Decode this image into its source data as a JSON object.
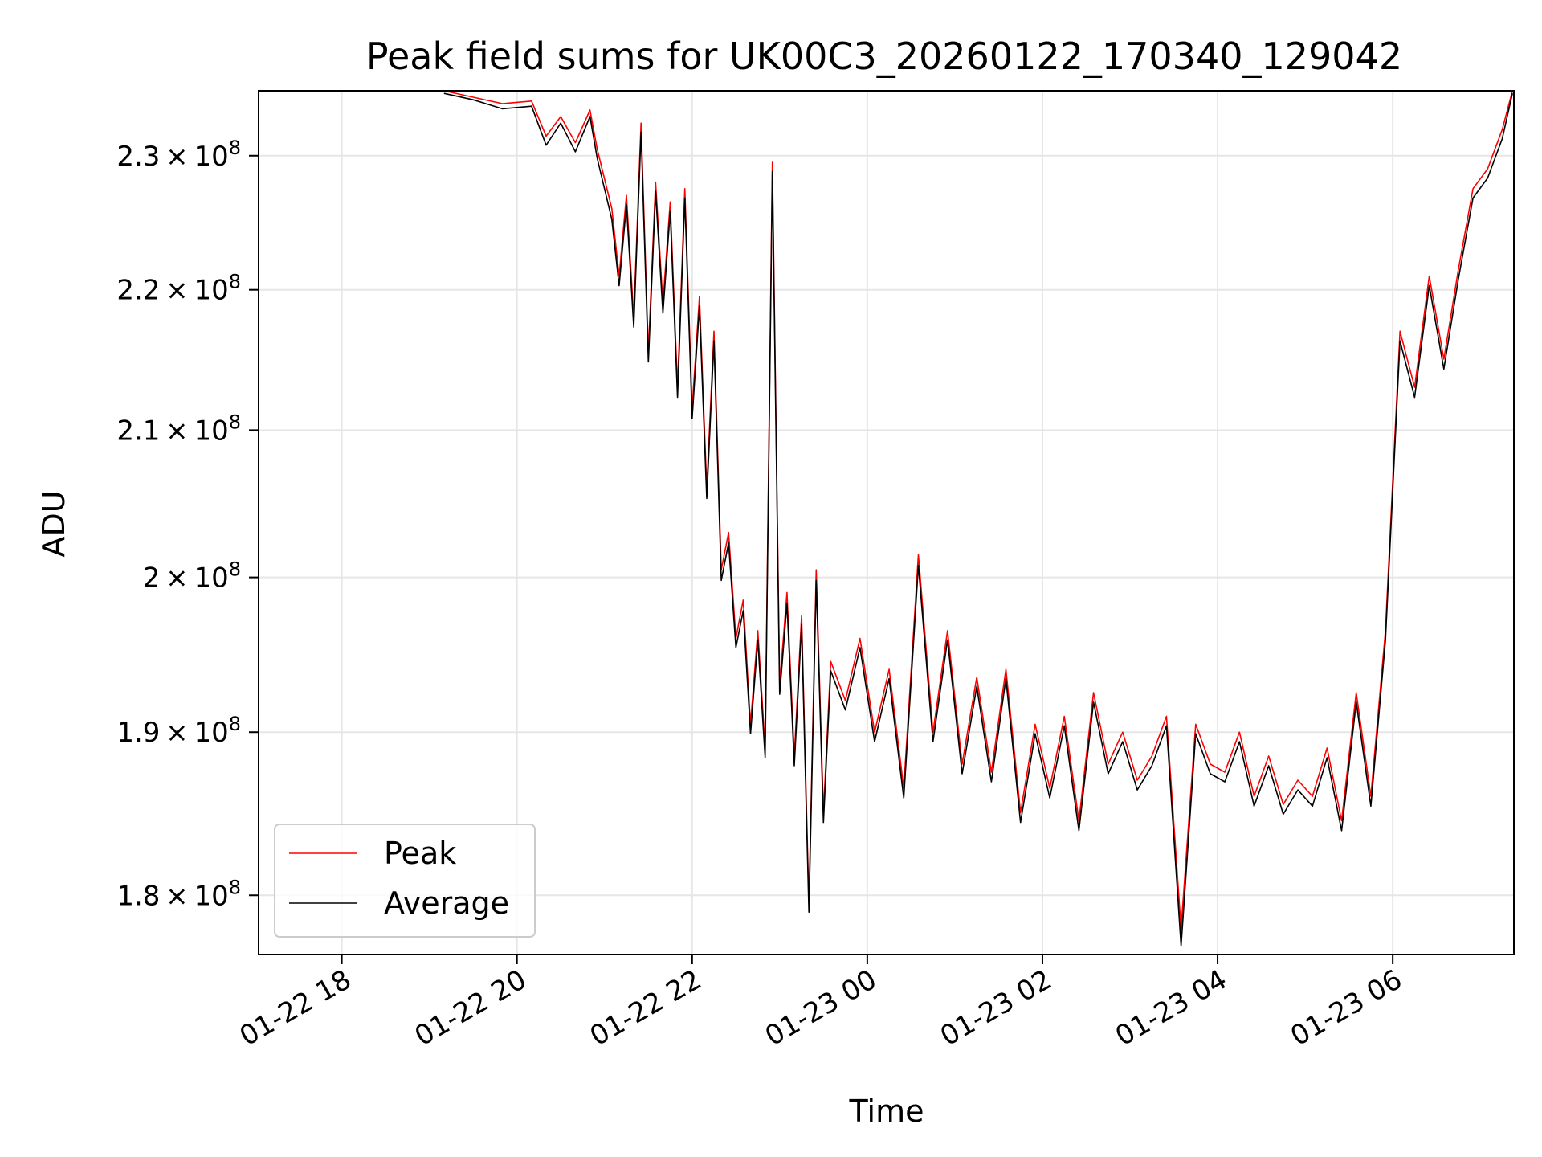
{
  "chart_data": {
    "type": "line",
    "title": "Peak field sums for UK00C3_20260122_170340_129042",
    "xlabel": "Time",
    "ylabel": "ADU",
    "yscale": "log",
    "grid": true,
    "legend_position": "lower-left",
    "xlim": [
      "2026-01-22 17:03",
      "2026-01-23 07:23"
    ],
    "ylim": [
      176500000,
      235000000
    ],
    "x_ticks": [
      {
        "value": "2026-01-22 18:00",
        "label": "01-22 18"
      },
      {
        "value": "2026-01-22 20:00",
        "label": "01-22 20"
      },
      {
        "value": "2026-01-22 22:00",
        "label": "01-22 22"
      },
      {
        "value": "2026-01-23 00:00",
        "label": "01-23 00"
      },
      {
        "value": "2026-01-23 02:00",
        "label": "01-23 02"
      },
      {
        "value": "2026-01-23 04:00",
        "label": "01-23 04"
      },
      {
        "value": "2026-01-23 06:00",
        "label": "01-23 06"
      }
    ],
    "y_ticks": [
      {
        "value": 180000000,
        "mantissa": "1.8",
        "exponent": "8"
      },
      {
        "value": 190000000,
        "mantissa": "1.9",
        "exponent": "8"
      },
      {
        "value": 200000000,
        "mantissa": "2",
        "exponent": "8"
      },
      {
        "value": 210000000,
        "mantissa": "2.1",
        "exponent": "8"
      },
      {
        "value": 220000000,
        "mantissa": "2.2",
        "exponent": "8"
      },
      {
        "value": 230000000,
        "mantissa": "2.3",
        "exponent": "8"
      }
    ],
    "series": [
      {
        "name": "Peak",
        "color": "#ff0000",
        "points": [
          [
            "2026-01-22 19:10",
            235000000
          ],
          [
            "2026-01-22 19:30",
            234500000
          ],
          [
            "2026-01-22 19:50",
            234000000
          ],
          [
            "2026-01-22 20:10",
            234200000
          ],
          [
            "2026-01-22 20:20",
            231500000
          ],
          [
            "2026-01-22 20:30",
            233000000
          ],
          [
            "2026-01-22 20:40",
            231000000
          ],
          [
            "2026-01-22 20:50",
            233500000
          ],
          [
            "2026-01-22 20:55",
            230500000
          ],
          [
            "2026-01-22 21:05",
            226000000
          ],
          [
            "2026-01-22 21:10",
            221000000
          ],
          [
            "2026-01-22 21:15",
            227000000
          ],
          [
            "2026-01-22 21:20",
            218000000
          ],
          [
            "2026-01-22 21:25",
            232500000
          ],
          [
            "2026-01-22 21:30",
            215500000
          ],
          [
            "2026-01-22 21:35",
            228000000
          ],
          [
            "2026-01-22 21:40",
            219000000
          ],
          [
            "2026-01-22 21:45",
            226500000
          ],
          [
            "2026-01-22 21:50",
            213000000
          ],
          [
            "2026-01-22 21:55",
            227500000
          ],
          [
            "2026-01-22 22:00",
            211500000
          ],
          [
            "2026-01-22 22:05",
            219500000
          ],
          [
            "2026-01-22 22:10",
            206000000
          ],
          [
            "2026-01-22 22:15",
            217000000
          ],
          [
            "2026-01-22 22:20",
            200500000
          ],
          [
            "2026-01-22 22:25",
            203000000
          ],
          [
            "2026-01-22 22:30",
            196000000
          ],
          [
            "2026-01-22 22:35",
            198500000
          ],
          [
            "2026-01-22 22:40",
            190500000
          ],
          [
            "2026-01-22 22:45",
            196500000
          ],
          [
            "2026-01-22 22:50",
            189000000
          ],
          [
            "2026-01-22 22:55",
            229500000
          ],
          [
            "2026-01-22 23:00",
            193000000
          ],
          [
            "2026-01-22 23:05",
            199000000
          ],
          [
            "2026-01-22 23:10",
            188500000
          ],
          [
            "2026-01-22 23:15",
            197500000
          ],
          [
            "2026-01-22 23:20",
            179500000
          ],
          [
            "2026-01-22 23:25",
            200500000
          ],
          [
            "2026-01-22 23:30",
            185000000
          ],
          [
            "2026-01-22 23:35",
            194500000
          ],
          [
            "2026-01-22 23:45",
            192000000
          ],
          [
            "2026-01-22 23:55",
            196000000
          ],
          [
            "2026-01-23 00:05",
            190000000
          ],
          [
            "2026-01-23 00:15",
            194000000
          ],
          [
            "2026-01-23 00:25",
            186500000
          ],
          [
            "2026-01-23 00:35",
            201500000
          ],
          [
            "2026-01-23 00:45",
            190000000
          ],
          [
            "2026-01-23 00:55",
            196500000
          ],
          [
            "2026-01-23 01:05",
            188000000
          ],
          [
            "2026-01-23 01:15",
            193500000
          ],
          [
            "2026-01-23 01:25",
            187500000
          ],
          [
            "2026-01-23 01:35",
            194000000
          ],
          [
            "2026-01-23 01:45",
            185000000
          ],
          [
            "2026-01-23 01:55",
            190500000
          ],
          [
            "2026-01-23 02:05",
            186500000
          ],
          [
            "2026-01-23 02:15",
            191000000
          ],
          [
            "2026-01-23 02:25",
            184500000
          ],
          [
            "2026-01-23 02:35",
            192500000
          ],
          [
            "2026-01-23 02:45",
            188000000
          ],
          [
            "2026-01-23 02:55",
            190000000
          ],
          [
            "2026-01-23 03:05",
            187000000
          ],
          [
            "2026-01-23 03:15",
            188500000
          ],
          [
            "2026-01-23 03:25",
            191000000
          ],
          [
            "2026-01-23 03:35",
            178000000
          ],
          [
            "2026-01-23 03:45",
            190500000
          ],
          [
            "2026-01-23 03:55",
            188000000
          ],
          [
            "2026-01-23 04:05",
            187500000
          ],
          [
            "2026-01-23 04:15",
            190000000
          ],
          [
            "2026-01-23 04:25",
            186000000
          ],
          [
            "2026-01-23 04:35",
            188500000
          ],
          [
            "2026-01-23 04:45",
            185500000
          ],
          [
            "2026-01-23 04:55",
            187000000
          ],
          [
            "2026-01-23 05:05",
            186000000
          ],
          [
            "2026-01-23 05:15",
            189000000
          ],
          [
            "2026-01-23 05:25",
            184500000
          ],
          [
            "2026-01-23 05:35",
            192500000
          ],
          [
            "2026-01-23 05:45",
            186000000
          ],
          [
            "2026-01-23 05:55",
            196500000
          ],
          [
            "2026-01-23 06:05",
            217000000
          ],
          [
            "2026-01-23 06:15",
            213000000
          ],
          [
            "2026-01-23 06:25",
            221000000
          ],
          [
            "2026-01-23 06:35",
            215000000
          ],
          [
            "2026-01-23 06:45",
            221500000
          ],
          [
            "2026-01-23 06:55",
            227500000
          ],
          [
            "2026-01-23 07:05",
            229000000
          ],
          [
            "2026-01-23 07:15",
            232000000
          ],
          [
            "2026-01-23 07:22",
            235000000
          ]
        ]
      },
      {
        "name": "Average",
        "color": "#000000",
        "points": [
          [
            "2026-01-22 19:10",
            234800000
          ],
          [
            "2026-01-22 19:30",
            234300000
          ],
          [
            "2026-01-22 19:50",
            233600000
          ],
          [
            "2026-01-22 20:10",
            233800000
          ],
          [
            "2026-01-22 20:20",
            230800000
          ],
          [
            "2026-01-22 20:30",
            232500000
          ],
          [
            "2026-01-22 20:40",
            230300000
          ],
          [
            "2026-01-22 20:50",
            233000000
          ],
          [
            "2026-01-22 20:55",
            229800000
          ],
          [
            "2026-01-22 21:05",
            225200000
          ],
          [
            "2026-01-22 21:10",
            220300000
          ],
          [
            "2026-01-22 21:15",
            226300000
          ],
          [
            "2026-01-22 21:20",
            217300000
          ],
          [
            "2026-01-22 21:25",
            231800000
          ],
          [
            "2026-01-22 21:30",
            214800000
          ],
          [
            "2026-01-22 21:35",
            227300000
          ],
          [
            "2026-01-22 21:40",
            218300000
          ],
          [
            "2026-01-22 21:45",
            225800000
          ],
          [
            "2026-01-22 21:50",
            212300000
          ],
          [
            "2026-01-22 21:55",
            226800000
          ],
          [
            "2026-01-22 22:00",
            210800000
          ],
          [
            "2026-01-22 22:05",
            218800000
          ],
          [
            "2026-01-22 22:10",
            205300000
          ],
          [
            "2026-01-22 22:15",
            216300000
          ],
          [
            "2026-01-22 22:20",
            199800000
          ],
          [
            "2026-01-22 22:25",
            202300000
          ],
          [
            "2026-01-22 22:30",
            195400000
          ],
          [
            "2026-01-22 22:35",
            197800000
          ],
          [
            "2026-01-22 22:40",
            189900000
          ],
          [
            "2026-01-22 22:45",
            195900000
          ],
          [
            "2026-01-22 22:50",
            188400000
          ],
          [
            "2026-01-22 22:55",
            228800000
          ],
          [
            "2026-01-22 23:00",
            192400000
          ],
          [
            "2026-01-22 23:05",
            198300000
          ],
          [
            "2026-01-22 23:10",
            187900000
          ],
          [
            "2026-01-22 23:15",
            196900000
          ],
          [
            "2026-01-22 23:20",
            179000000
          ],
          [
            "2026-01-22 23:25",
            199800000
          ],
          [
            "2026-01-22 23:30",
            184400000
          ],
          [
            "2026-01-22 23:35",
            193900000
          ],
          [
            "2026-01-22 23:45",
            191400000
          ],
          [
            "2026-01-22 23:55",
            195400000
          ],
          [
            "2026-01-23 00:05",
            189400000
          ],
          [
            "2026-01-23 00:15",
            193400000
          ],
          [
            "2026-01-23 00:25",
            185900000
          ],
          [
            "2026-01-23 00:35",
            200800000
          ],
          [
            "2026-01-23 00:45",
            189400000
          ],
          [
            "2026-01-23 00:55",
            195900000
          ],
          [
            "2026-01-23 01:05",
            187400000
          ],
          [
            "2026-01-23 01:15",
            192900000
          ],
          [
            "2026-01-23 01:25",
            186900000
          ],
          [
            "2026-01-23 01:35",
            193400000
          ],
          [
            "2026-01-23 01:45",
            184400000
          ],
          [
            "2026-01-23 01:55",
            189900000
          ],
          [
            "2026-01-23 02:05",
            185900000
          ],
          [
            "2026-01-23 02:15",
            190400000
          ],
          [
            "2026-01-23 02:25",
            183900000
          ],
          [
            "2026-01-23 02:35",
            191900000
          ],
          [
            "2026-01-23 02:45",
            187400000
          ],
          [
            "2026-01-23 02:55",
            189400000
          ],
          [
            "2026-01-23 03:05",
            186400000
          ],
          [
            "2026-01-23 03:15",
            187900000
          ],
          [
            "2026-01-23 03:25",
            190400000
          ],
          [
            "2026-01-23 03:35",
            177000000
          ],
          [
            "2026-01-23 03:45",
            189900000
          ],
          [
            "2026-01-23 03:55",
            187400000
          ],
          [
            "2026-01-23 04:05",
            186900000
          ],
          [
            "2026-01-23 04:15",
            189400000
          ],
          [
            "2026-01-23 04:25",
            185400000
          ],
          [
            "2026-01-23 04:35",
            187900000
          ],
          [
            "2026-01-23 04:45",
            184900000
          ],
          [
            "2026-01-23 04:55",
            186400000
          ],
          [
            "2026-01-23 05:05",
            185400000
          ],
          [
            "2026-01-23 05:15",
            188400000
          ],
          [
            "2026-01-23 05:25",
            183900000
          ],
          [
            "2026-01-23 05:35",
            191900000
          ],
          [
            "2026-01-23 05:45",
            185400000
          ],
          [
            "2026-01-23 05:55",
            195900000
          ],
          [
            "2026-01-23 06:05",
            216300000
          ],
          [
            "2026-01-23 06:15",
            212300000
          ],
          [
            "2026-01-23 06:25",
            220300000
          ],
          [
            "2026-01-23 06:35",
            214300000
          ],
          [
            "2026-01-23 06:45",
            220800000
          ],
          [
            "2026-01-23 06:55",
            226800000
          ],
          [
            "2026-01-23 07:05",
            228300000
          ],
          [
            "2026-01-23 07:15",
            231300000
          ],
          [
            "2026-01-23 07:22",
            234800000
          ]
        ]
      }
    ]
  }
}
